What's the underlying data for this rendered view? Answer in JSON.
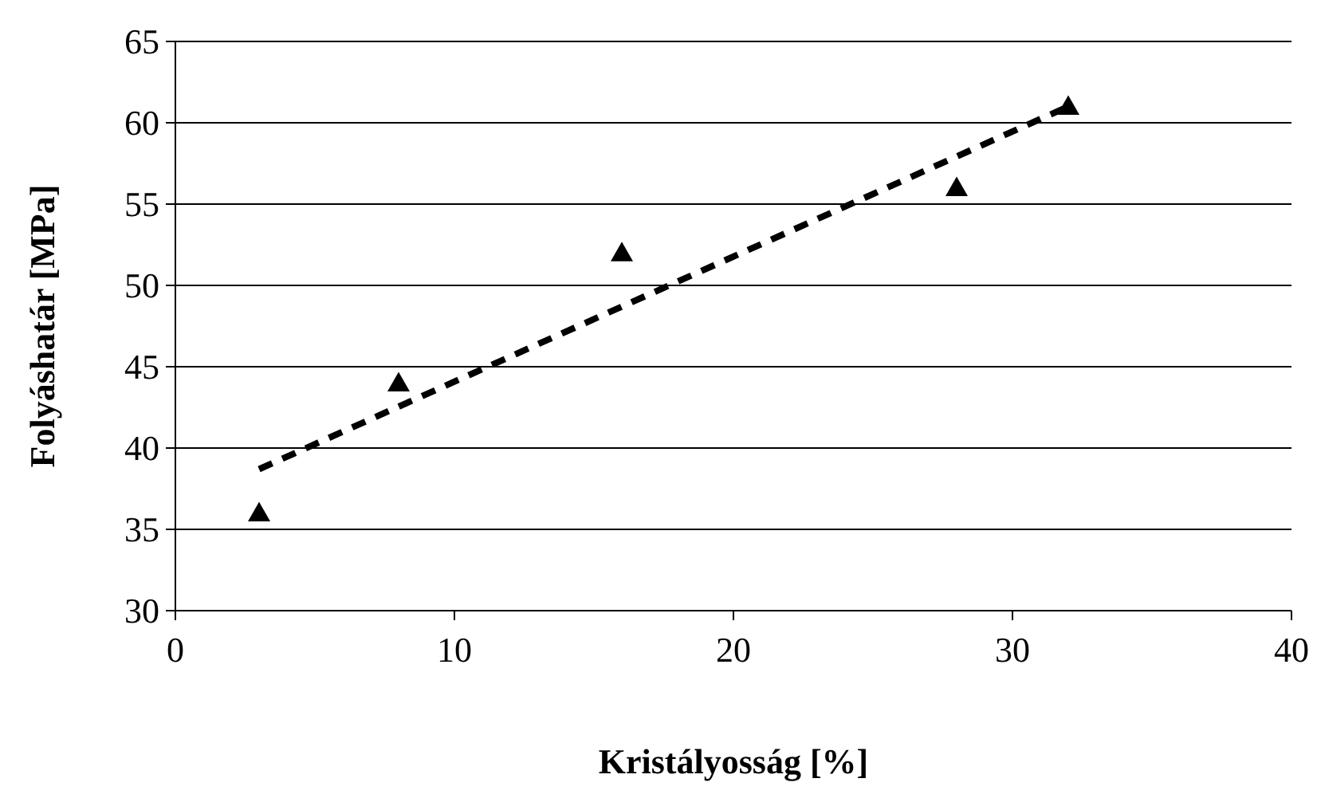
{
  "chart_data": {
    "type": "scatter",
    "xlabel": "Kristályosság [%]",
    "ylabel": "Folyáshatár [MPa]",
    "xlim": [
      0,
      40
    ],
    "xticks": [
      0,
      10,
      20,
      30,
      40
    ],
    "ylim": [
      30,
      65
    ],
    "yticks": [
      30,
      35,
      40,
      45,
      50,
      55,
      60,
      65
    ],
    "grid": "y",
    "series": [
      {
        "x": [
          3,
          8,
          16,
          28,
          32
        ],
        "values": [
          36,
          44,
          52,
          56,
          61
        ],
        "color": "#000000",
        "marker": "triangle"
      },
      {
        "type": "line",
        "x": [
          3,
          32
        ],
        "values": [
          38.7,
          61.0
        ],
        "color": "#000000",
        "line_style": "dashed",
        "marker": "none"
      }
    ]
  }
}
